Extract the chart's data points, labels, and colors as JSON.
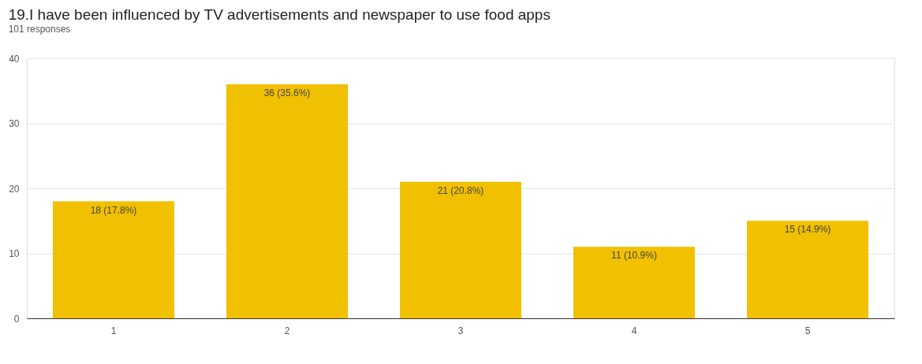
{
  "chart_data": {
    "type": "bar",
    "title": "19.I have been influenced by TV advertisements and newspaper to use food apps",
    "subtitle": "101 responses",
    "categories": [
      "1",
      "2",
      "3",
      "4",
      "5"
    ],
    "values": [
      18,
      36,
      21,
      11,
      15
    ],
    "value_labels": [
      "18 (17.8%)",
      "36 (35.6%)",
      "21 (20.8%)",
      "11 (10.9%)",
      "15 (14.9%)"
    ],
    "color": "#f1c000",
    "ylim": [
      0,
      40
    ],
    "yticks": [
      0,
      10,
      20,
      30,
      40
    ],
    "grid": "y"
  }
}
